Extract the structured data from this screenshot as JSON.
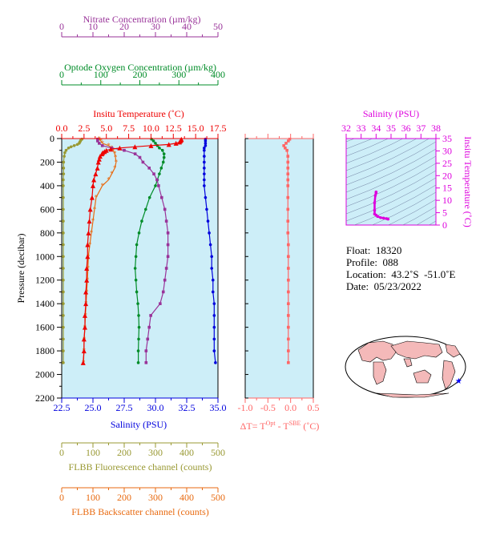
{
  "chart_data": {
    "type": "line",
    "colors": {
      "nitrate": "#993399",
      "oxygen": "#008c28",
      "temperature": "#ee0000",
      "salinity": "#0000dd",
      "fluorescence": "#999933",
      "backscatter": "#e86a10",
      "delta_t": "#ff6666",
      "panel_bg": "#cdeef8",
      "ts_axis": "#dd00dd"
    },
    "axes": {
      "nitrate": {
        "label": "Nitrate Concentration (µm/kg)",
        "range": [
          0,
          50
        ],
        "ticks": [
          "0",
          "10",
          "20",
          "30",
          "40",
          "50"
        ]
      },
      "oxygen": {
        "label": "Optode Oxygen Concentration (µm/kg)",
        "range": [
          0,
          400
        ],
        "ticks": [
          "0",
          "100",
          "200",
          "300",
          "400"
        ]
      },
      "temperature": {
        "label": "Insitu Temperature (˚C)",
        "range": [
          0,
          17.5
        ],
        "ticks": [
          "0.0",
          "2.5",
          "5.0",
          "7.5",
          "10.0",
          "12.5",
          "15.0",
          "17.5"
        ]
      },
      "pressure": {
        "label": "Pressure (decibar)",
        "range": [
          0,
          2200
        ],
        "ticks": [
          "0",
          "200",
          "400",
          "600",
          "800",
          "1000",
          "1200",
          "1400",
          "1600",
          "1800",
          "2000",
          "2200"
        ]
      },
      "salinity": {
        "label": "Salinity (PSU)",
        "range": [
          22.5,
          35.0
        ],
        "ticks": [
          "22.5",
          "25.0",
          "27.5",
          "30.0",
          "32.5",
          "35.0"
        ]
      },
      "fluorescence": {
        "label": "FLBB Fluorescence channel (counts)",
        "range": [
          0,
          500
        ],
        "ticks": [
          "0",
          "100",
          "200",
          "300",
          "400",
          "500"
        ]
      },
      "backscatter": {
        "label": "FLBB Backscatter channel (counts)",
        "range": [
          0,
          500
        ],
        "ticks": [
          "0",
          "100",
          "200",
          "300",
          "400",
          "500"
        ]
      },
      "delta_t": {
        "label_prefix": "ΔT= T",
        "label_sup1": "Opt",
        "label_mid": " - T",
        "label_sup2": "SBE",
        "label_suffix": " (˚C)",
        "range": [
          -1.0,
          0.5
        ],
        "ticks": [
          "-1.0",
          "-0.5",
          "0.0",
          "0.5"
        ]
      },
      "ts_salinity": {
        "label": "Salinity (PSU)",
        "range": [
          32,
          38
        ],
        "ticks": [
          "32",
          "33",
          "34",
          "35",
          "36",
          "37",
          "38"
        ]
      },
      "ts_temperature": {
        "label": "Insitu Temperature (˚C)",
        "range": [
          0,
          35
        ],
        "ticks": [
          "0",
          "5",
          "10",
          "15",
          "20",
          "25",
          "30",
          "35"
        ]
      }
    },
    "series": {
      "temperature": {
        "pressure": [
          5,
          10,
          20,
          30,
          40,
          50,
          60,
          70,
          80,
          90,
          100,
          110,
          120,
          130,
          150,
          175,
          200,
          250,
          300,
          350,
          400,
          500,
          600,
          700,
          800,
          900,
          1000,
          1100,
          1200,
          1300,
          1400,
          1500,
          1600,
          1700,
          1800,
          1900
        ],
        "values": [
          13.4,
          13.4,
          13.3,
          13.2,
          12.8,
          12.0,
          10.0,
          8.2,
          6.5,
          5.5,
          5.0,
          4.8,
          4.6,
          4.5,
          4.3,
          4.2,
          4.1,
          4.0,
          3.8,
          3.6,
          3.5,
          3.4,
          3.2,
          3.1,
          3.0,
          2.9,
          2.9,
          2.8,
          2.8,
          2.7,
          2.7,
          2.6,
          2.6,
          2.5,
          2.5,
          2.4
        ]
      },
      "salinity": {
        "pressure": [
          5,
          20,
          40,
          60,
          80,
          100,
          150,
          200,
          250,
          300,
          350,
          400,
          500,
          600,
          700,
          800,
          900,
          1000,
          1100,
          1200,
          1300,
          1400,
          1500,
          1600,
          1700,
          1800,
          1900
        ],
        "values": [
          34.0,
          34.0,
          34.0,
          34.0,
          33.9,
          33.9,
          33.9,
          33.9,
          33.9,
          33.9,
          33.9,
          33.9,
          34.0,
          34.1,
          34.2,
          34.3,
          34.4,
          34.5,
          34.5,
          34.6,
          34.6,
          34.7,
          34.7,
          34.7,
          34.7,
          34.7,
          34.8
        ]
      },
      "oxygen": {
        "pressure": [
          5,
          20,
          40,
          60,
          80,
          100,
          130,
          160,
          200,
          250,
          300,
          350,
          400,
          500,
          600,
          700,
          800,
          900,
          1000,
          1100,
          1200,
          1300,
          1400,
          1500,
          1600,
          1700,
          1800,
          1900
        ],
        "values": [
          230,
          235,
          240,
          245,
          250,
          258,
          262,
          262,
          260,
          255,
          250,
          245,
          240,
          225,
          215,
          205,
          198,
          192,
          190,
          188,
          190,
          192,
          195,
          197,
          198,
          197,
          196,
          196
        ]
      },
      "nitrate": {
        "pressure": [
          5,
          20,
          40,
          60,
          80,
          100,
          130,
          160,
          200,
          250,
          300,
          350,
          400,
          500,
          600,
          700,
          800,
          900,
          1000,
          1100,
          1200,
          1300,
          1400,
          1500,
          1600,
          1700,
          1800,
          1900
        ],
        "values": [
          11.5,
          11.5,
          12.0,
          13.0,
          16.0,
          20.0,
          23.5,
          25.0,
          26.0,
          28.0,
          29.5,
          30.5,
          31.0,
          32.0,
          33.0,
          33.5,
          34.0,
          34.0,
          34.0,
          33.5,
          33.0,
          32.5,
          31.5,
          28.5,
          28.0,
          27.5,
          27.0,
          27.0
        ]
      },
      "fluorescence": {
        "pressure": [
          5,
          10,
          20,
          30,
          40,
          50,
          60,
          70,
          80,
          100,
          120,
          150,
          200,
          250,
          300,
          350,
          400,
          500,
          600,
          700,
          800,
          900,
          1000,
          1100,
          1200,
          1300,
          1400,
          1500,
          1600,
          1700,
          1800,
          1900
        ],
        "values": [
          65,
          62,
          60,
          58,
          56,
          50,
          40,
          30,
          22,
          14,
          10,
          8,
          6,
          6,
          6,
          5,
          5,
          5,
          5,
          5,
          5,
          5,
          5,
          5,
          5,
          5,
          5,
          5,
          5,
          5,
          5,
          5
        ]
      },
      "backscatter": {
        "pressure": [
          5,
          20,
          40,
          60,
          80,
          100,
          130,
          160,
          200,
          250,
          300,
          350,
          400,
          500,
          600,
          700,
          800,
          900,
          1000,
          1100,
          1200,
          1300,
          1400,
          1500,
          1600,
          1700,
          1800,
          1900
        ],
        "values": [
          120,
          125,
          130,
          150,
          160,
          165,
          170,
          172,
          174,
          170,
          160,
          150,
          130,
          110,
          105,
          100,
          95,
          90,
          85,
          84,
          82,
          80,
          78,
          76,
          74,
          72,
          71,
          70
        ]
      },
      "delta_t": {
        "pressure": [
          5,
          20,
          40,
          60,
          80,
          100,
          150,
          200,
          250,
          300,
          350,
          400,
          500,
          600,
          700,
          800,
          900,
          1000,
          1100,
          1200,
          1300,
          1400,
          1500,
          1600,
          1700,
          1800,
          1900
        ],
        "values": [
          -0.02,
          -0.05,
          -0.1,
          -0.15,
          -0.12,
          -0.08,
          -0.06,
          -0.06,
          -0.06,
          -0.06,
          -0.06,
          -0.06,
          -0.06,
          -0.06,
          -0.06,
          -0.06,
          -0.05,
          -0.05,
          -0.05,
          -0.05,
          -0.05,
          -0.05,
          -0.05,
          -0.05,
          -0.05,
          -0.05,
          -0.05
        ]
      },
      "ts": {
        "salinity": [
          34.0,
          34.0,
          33.95,
          33.9,
          33.9,
          33.9,
          34.0,
          34.1,
          34.3,
          34.5,
          34.7,
          34.8
        ],
        "temperature": [
          13.4,
          13.0,
          12.0,
          9.0,
          6.0,
          4.5,
          4.0,
          3.5,
          3.0,
          2.8,
          2.6,
          2.4
        ]
      }
    }
  },
  "info": {
    "float": "Float:  18320",
    "profile": "Profile:  088",
    "location": "Location:  43.2˚S  -51.0˚E",
    "date": "Date:  05/23/2022"
  },
  "map": {
    "marker_lat": -43.2,
    "marker_lon": -51.0
  }
}
